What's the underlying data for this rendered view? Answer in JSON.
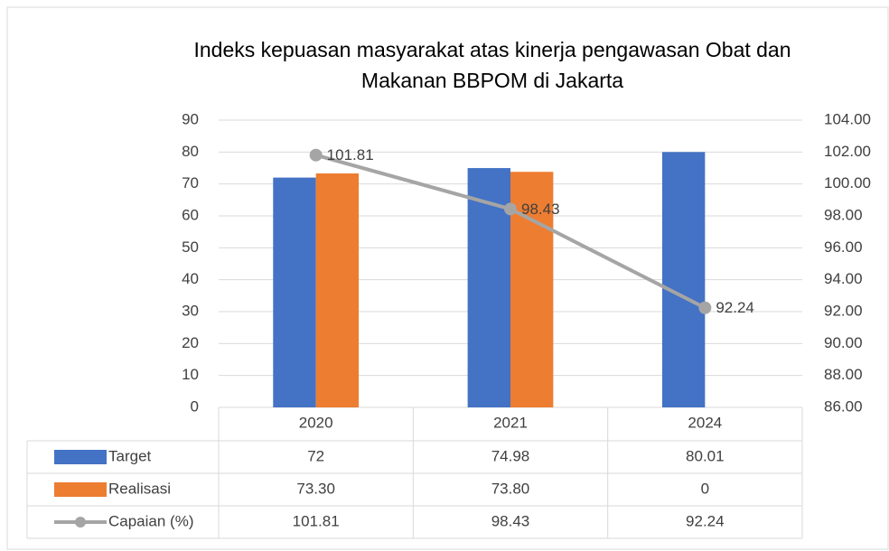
{
  "chart_data": {
    "type": "bar",
    "title": "Indeks kepuasan masyarakat atas kinerja pengawasan Obat dan Makanan BBPOM di Jakarta",
    "categories": [
      "2020",
      "2021",
      "2024"
    ],
    "series": [
      {
        "name": "Target",
        "color": "#4472c4",
        "values": [
          72,
          74.98,
          80.01
        ]
      },
      {
        "name": "Realisasi",
        "color": "#ed7d31",
        "values": [
          73.3,
          73.8,
          0
        ],
        "value_labels": [
          "73.30",
          "73.80",
          "0"
        ]
      },
      {
        "name": "Capaian (%)",
        "color": "#a5a5a5",
        "type": "line",
        "axis": "y2",
        "values": [
          101.81,
          98.43,
          92.24
        ]
      }
    ],
    "ylim": [
      0,
      90
    ],
    "yticks": [
      0,
      10,
      20,
      30,
      40,
      50,
      60,
      70,
      80,
      90
    ],
    "y2lim": [
      86,
      104
    ],
    "y2ticks": [
      {
        "value": 86,
        "label": "86.00"
      },
      {
        "value": 88,
        "label": "88.00"
      },
      {
        "value": 90,
        "label": "90.00"
      },
      {
        "value": 92,
        "label": "92.00"
      },
      {
        "value": 94,
        "label": "94.00"
      },
      {
        "value": 96,
        "label": "96.00"
      },
      {
        "value": 98,
        "label": "98.00"
      },
      {
        "value": 100,
        "label": "100.00"
      },
      {
        "value": 102,
        "label": "102.00"
      },
      {
        "value": 104,
        "label": "104.00"
      }
    ],
    "grid": true,
    "data_table": true
  }
}
